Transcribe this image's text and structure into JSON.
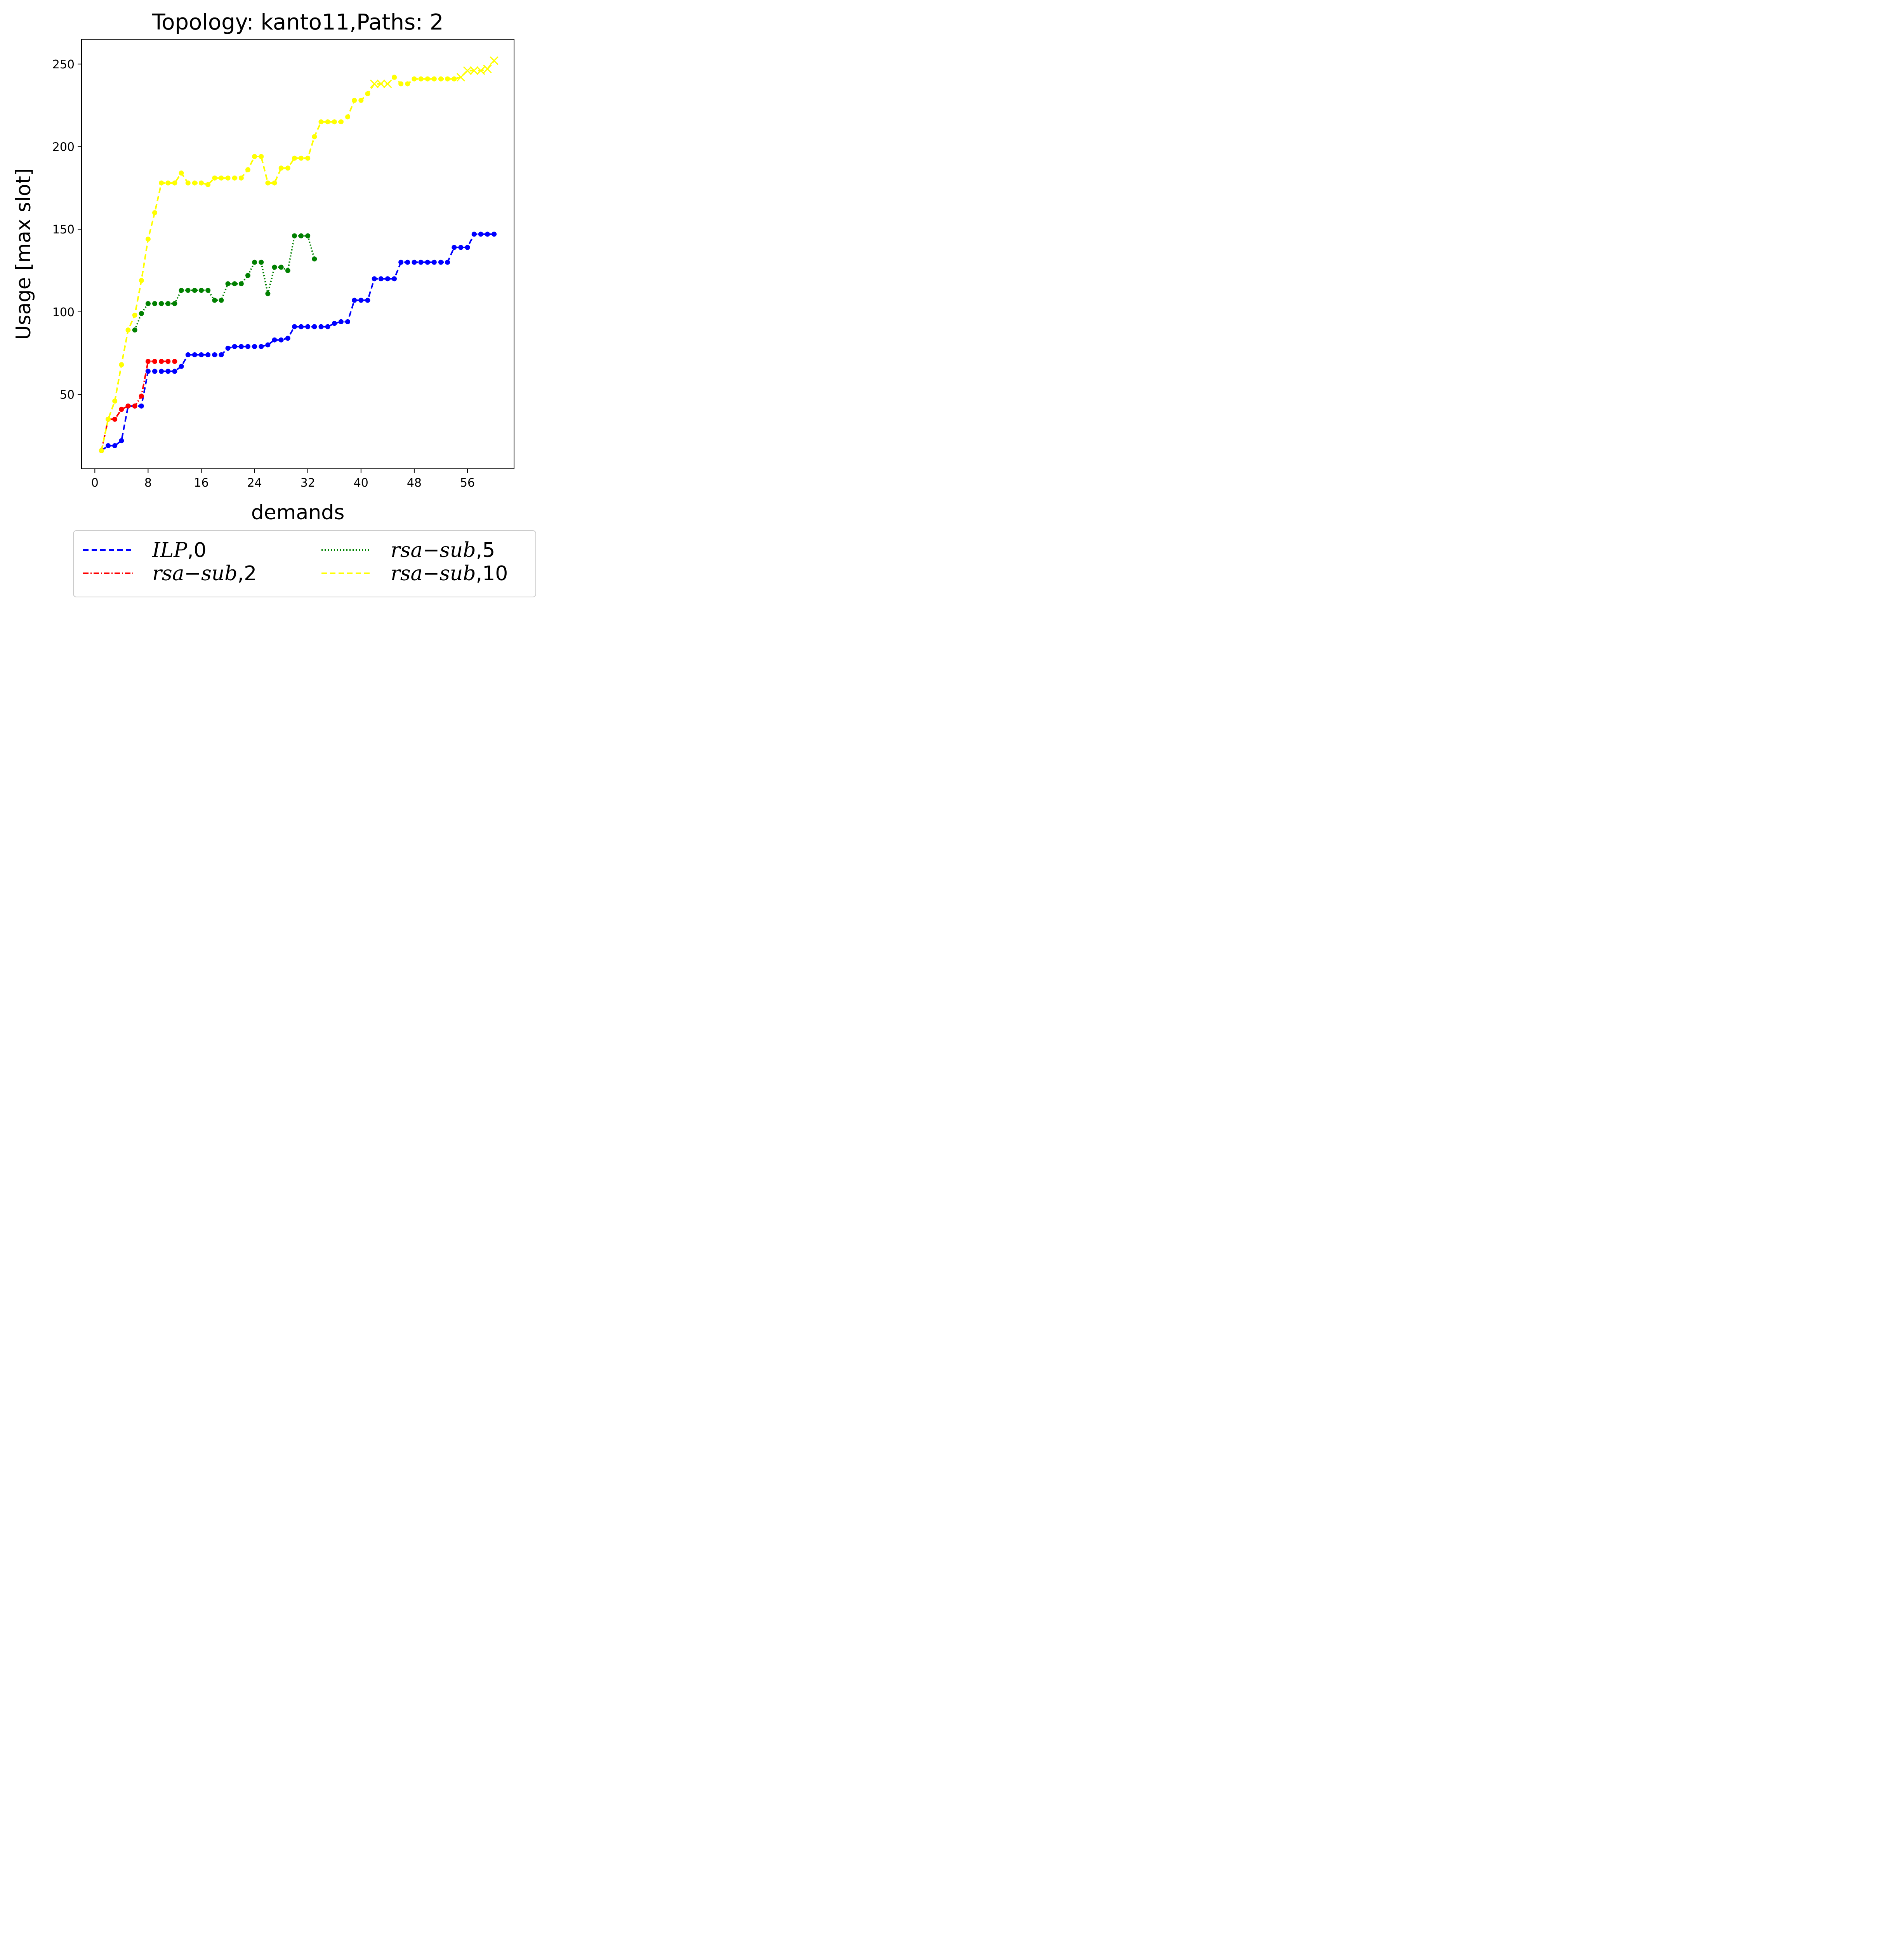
{
  "chart_data": {
    "type": "line",
    "title": "Topology: kanto11,Paths: 2",
    "xlabel": "demands",
    "ylabel": "Usage [max slot]",
    "xlim": [
      -2,
      63
    ],
    "ylim": [
      5,
      265
    ],
    "xticks": [
      0,
      8,
      16,
      24,
      32,
      40,
      48,
      56
    ],
    "yticks": [
      50,
      100,
      150,
      200,
      250
    ],
    "legend_placement": "below-center",
    "series": [
      {
        "name": "ILP",
        "name_suffix": ",0",
        "color": "#0000ff",
        "dash": "14 8",
        "x": [
          1,
          2,
          3,
          4,
          5,
          6,
          7,
          8,
          9,
          10,
          11,
          12,
          13,
          14,
          15,
          16,
          17,
          18,
          19,
          20,
          21,
          22,
          23,
          24,
          25,
          26,
          27,
          28,
          29,
          30,
          31,
          32,
          33,
          34,
          35,
          36,
          37,
          38,
          39,
          40,
          41,
          42,
          43,
          44,
          45,
          46,
          47,
          48,
          49,
          50,
          51,
          52,
          53,
          54,
          55,
          56,
          57,
          58,
          59,
          60
        ],
        "y": [
          16,
          19,
          19,
          22,
          43,
          43,
          43,
          64,
          64,
          64,
          64,
          64,
          67,
          74,
          74,
          74,
          74,
          74,
          74,
          78,
          79,
          79,
          79,
          79,
          79,
          80,
          83,
          83,
          84,
          91,
          91,
          91,
          91,
          91,
          91,
          93,
          94,
          94,
          107,
          107,
          107,
          120,
          120,
          120,
          120,
          130,
          130,
          130,
          130,
          130,
          130,
          130,
          130,
          139,
          139,
          139,
          147,
          147,
          147,
          147
        ],
        "x_markers": []
      },
      {
        "name": "rsa−sub",
        "name_suffix": ",2",
        "color": "#ff0000",
        "dash": "14 5 3 5",
        "x": [
          1,
          2,
          3,
          4,
          5,
          6,
          7,
          8,
          9,
          10,
          11,
          12
        ],
        "y": [
          16,
          35,
          35,
          41,
          43,
          43,
          49,
          70,
          70,
          70,
          70,
          70
        ],
        "x_markers": []
      },
      {
        "name": "rsa−sub",
        "name_suffix": ",5",
        "color": "#008000",
        "dash": "3 5",
        "x": [
          6,
          7,
          8,
          9,
          10,
          11,
          12,
          13,
          14,
          15,
          16,
          17,
          18,
          19,
          20,
          21,
          22,
          23,
          24,
          25,
          26,
          27,
          28,
          29,
          30,
          31,
          32,
          33
        ],
        "y": [
          89,
          99,
          105,
          105,
          105,
          105,
          105,
          113,
          113,
          113,
          113,
          113,
          107,
          107,
          117,
          117,
          117,
          122,
          130,
          130,
          111,
          127,
          127,
          125,
          146,
          146,
          146,
          132
        ],
        "x_markers": []
      },
      {
        "name": "rsa−sub",
        "name_suffix": ",10",
        "color": "#ffff00",
        "dash": "14 8",
        "x": [
          1,
          2,
          3,
          4,
          5,
          6,
          7,
          8,
          9,
          10,
          11,
          12,
          13,
          14,
          15,
          16,
          17,
          18,
          19,
          20,
          21,
          22,
          23,
          24,
          25,
          26,
          27,
          28,
          29,
          30,
          31,
          32,
          33,
          34,
          35,
          36,
          37,
          38,
          39,
          40,
          41,
          42,
          43,
          44,
          45,
          46,
          47,
          48,
          49,
          50,
          51,
          52,
          53,
          54,
          55,
          56,
          57,
          58,
          59,
          60
        ],
        "y": [
          16,
          35,
          46,
          68,
          89,
          98,
          119,
          144,
          160,
          178,
          178,
          178,
          184,
          178,
          178,
          178,
          177,
          181,
          181,
          181,
          181,
          181,
          186,
          194,
          194,
          178,
          178,
          187,
          187,
          193,
          193,
          193,
          206,
          215,
          215,
          215,
          215,
          218,
          228,
          228,
          232,
          238,
          238,
          238,
          242,
          238,
          238,
          241,
          241,
          241,
          241,
          241,
          241,
          241,
          242,
          246,
          246,
          246,
          247,
          252
        ],
        "x_markers": [
          42,
          43,
          44,
          55,
          56,
          57,
          58,
          59,
          60
        ]
      }
    ]
  }
}
